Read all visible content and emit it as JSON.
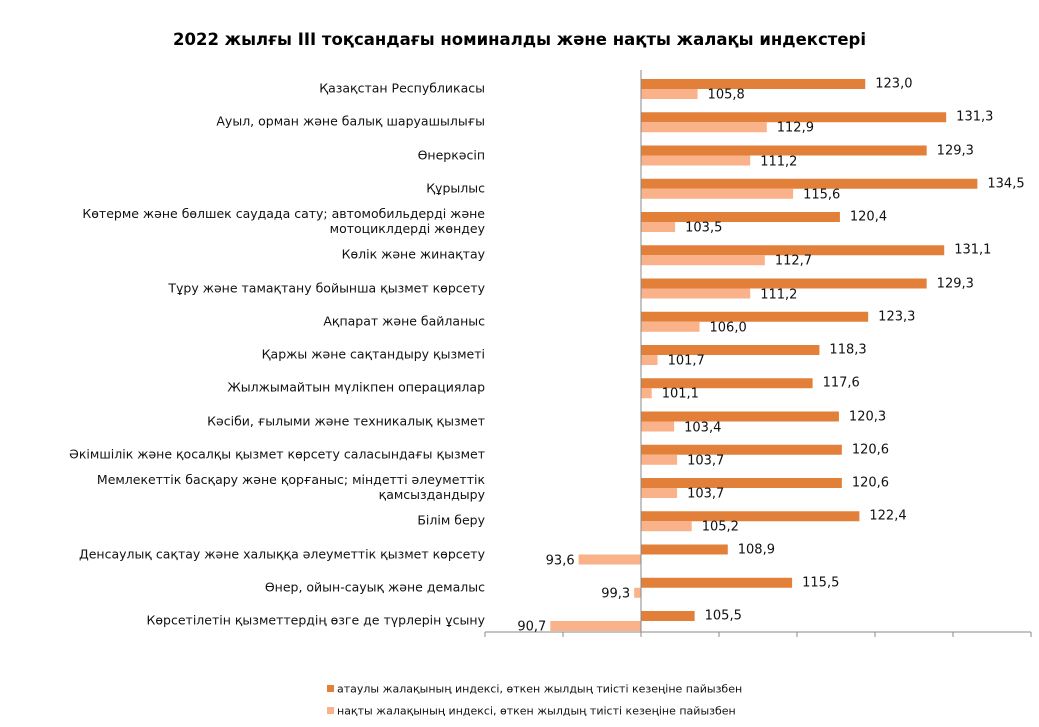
{
  "chart_data": {
    "type": "hbar",
    "title": "2022 жылғы ІІІ тоқсандағы номиналды және нақты жалақы индекстері",
    "categories": [
      "Қазақстан Республикасы",
      "Ауыл, орман және балық шаруашылығы",
      "Өнеркәсіп",
      "Құрылыс",
      "Көтерме және бөлшек саудада сату; автомобильдерді және\nмотоциклдерді жөндеу",
      "Көлік және жинақтау",
      "Тұру және тамақтану бойынша қызмет көрсету",
      "Ақпарат және байланыс",
      "Қаржы және сақтандыру қызметі",
      "Жылжымайтын мүлікпен операциялар",
      "Кәсіби, ғылыми және техникалық қызмет",
      "Әкімшілік және қосалқы қызмет көрсету саласындағы қызмет",
      "Мемлекеттік басқару және қорғаныс; міндетті әлеуметтік\nқамсыздандыру",
      "Білім беру",
      "Денсаулық сақтау және халыққа әлеуметтік қызмет көрсету",
      "Өнер, ойын-сауық және демалыс",
      "Көрсетілетін қызметтердің өзге де түрлерін ұсыну"
    ],
    "series": [
      {
        "name": "атаулы жалақының индексі, өткен жылдың тиісті кезеңіне пайызбен",
        "color": "#e2803a",
        "values": [
          123.0,
          131.3,
          129.3,
          134.5,
          120.4,
          131.1,
          129.3,
          123.3,
          118.3,
          117.6,
          120.3,
          120.6,
          120.6,
          122.4,
          108.9,
          115.5,
          105.5
        ],
        "value_labels": [
          "123,0",
          "131,3",
          "129,3",
          "134,5",
          "120,4",
          "131,1",
          "129,3",
          "123,3",
          "118,3",
          "117,6",
          "120,3",
          "120,6",
          "120,6",
          "122,4",
          "108,9",
          "115,5",
          "105,5"
        ]
      },
      {
        "name": "нақты жалақының индексі, өткен жылдың тиісті кезеңіне пайызбен",
        "color": "#f9b28a",
        "values": [
          105.8,
          112.9,
          111.2,
          115.6,
          103.5,
          112.7,
          111.2,
          106.0,
          101.7,
          101.1,
          103.4,
          103.7,
          103.7,
          105.2,
          93.6,
          99.3,
          90.7
        ],
        "value_labels": [
          "105,8",
          "112,9",
          "111,2",
          "115,6",
          "103,5",
          "112,7",
          "111,2",
          "106,0",
          "101,7",
          "101,1",
          "103,4",
          "103,7",
          "103,7",
          "105,2",
          "93,6",
          "99,3",
          "90,7"
        ]
      }
    ],
    "baseline": 100,
    "xlim": [
      84,
      140
    ],
    "xticks": [
      84,
      92,
      100,
      108,
      116,
      124,
      132,
      140
    ],
    "legend": "bottom"
  }
}
